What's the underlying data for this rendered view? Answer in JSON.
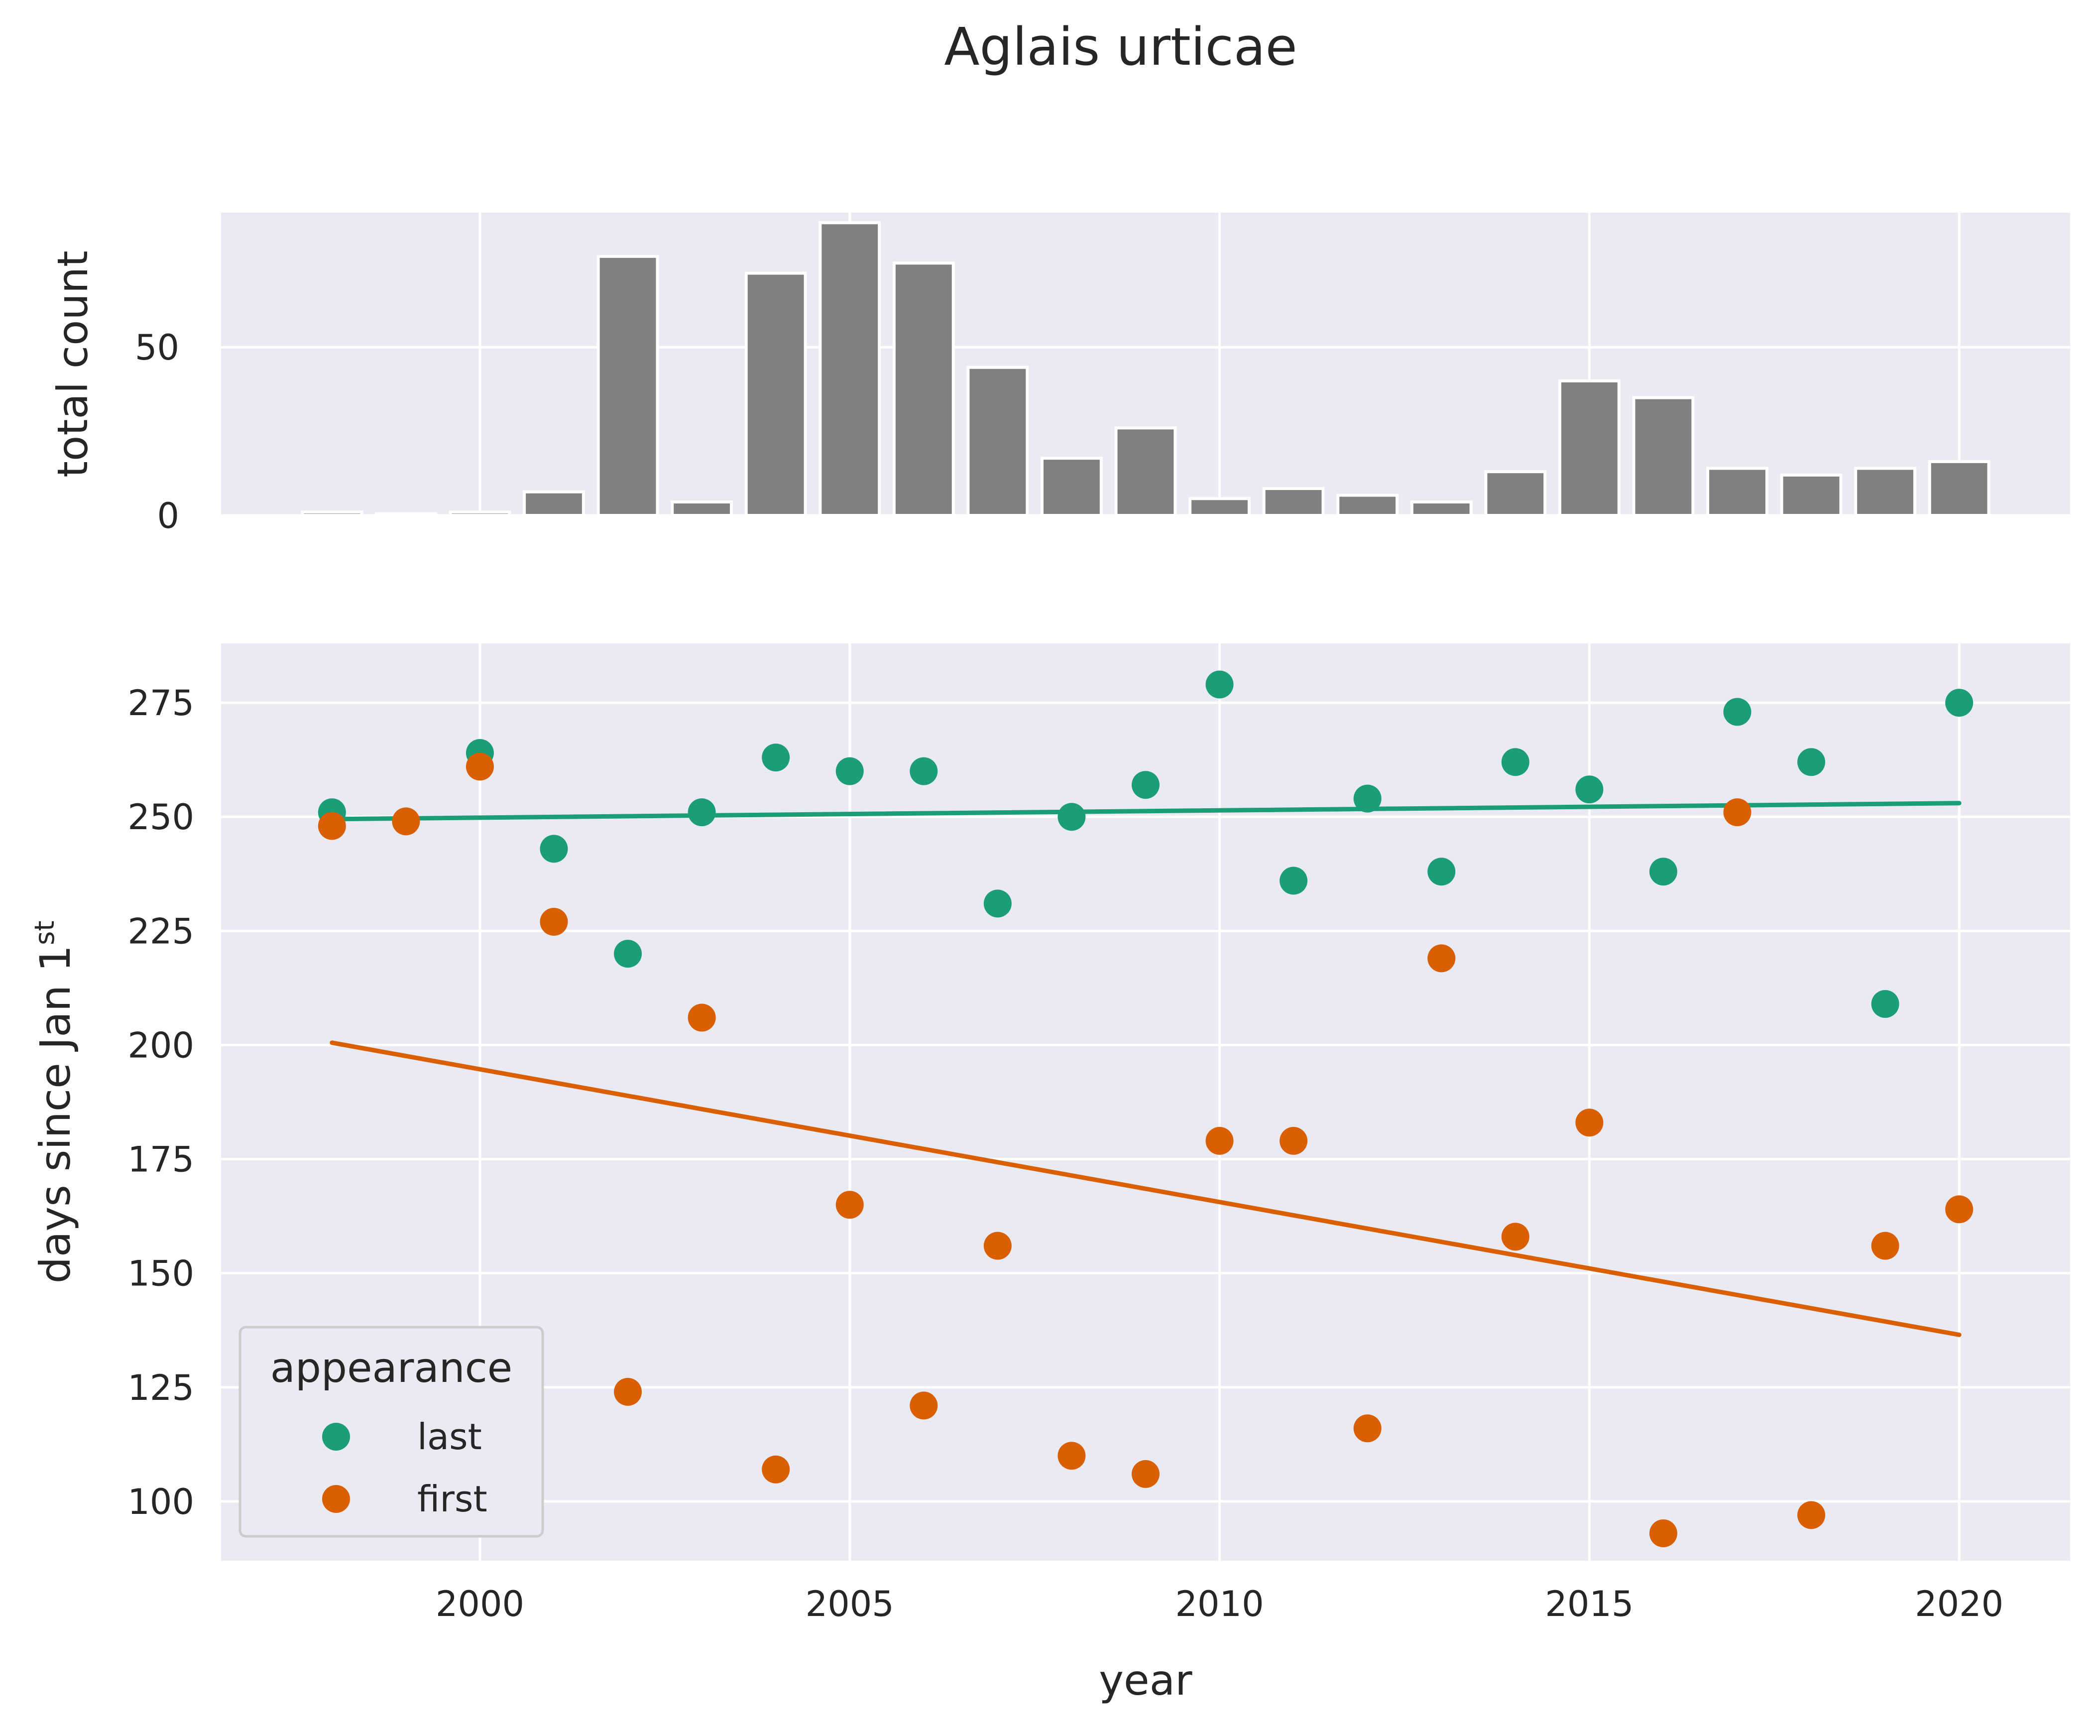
{
  "chart_data": [
    {
      "type": "bar",
      "title": "Aglais urticae",
      "ylabel": "total count",
      "ylim": [
        0,
        90
      ],
      "yticks": [
        0,
        50
      ],
      "xlim": [
        1996.5,
        2021.5
      ],
      "grid": true,
      "bar_color": "#808080",
      "x": [
        1998,
        1999,
        2000,
        2001,
        2002,
        2003,
        2004,
        2005,
        2006,
        2007,
        2008,
        2009,
        2010,
        2011,
        2012,
        2013,
        2014,
        2015,
        2016,
        2017,
        2018,
        2019,
        2020
      ],
      "values": [
        1,
        0.5,
        1,
        7,
        77,
        4,
        72,
        87,
        75,
        44,
        17,
        26,
        5,
        8,
        6,
        4,
        13,
        40,
        35,
        14,
        12,
        14,
        16
      ]
    },
    {
      "type": "scatter",
      "xlabel": "year",
      "ylabel_main": "days since Jan 1",
      "ylabel_sup": "st",
      "xlim": [
        1996.5,
        2021.5
      ],
      "ylim": [
        87,
        288
      ],
      "xticks": [
        2000,
        2005,
        2010,
        2015,
        2020
      ],
      "yticks": [
        100,
        125,
        150,
        175,
        200,
        225,
        250,
        275
      ],
      "grid": true,
      "legend": {
        "title": "appearance",
        "position": "lower-left"
      },
      "series": [
        {
          "name": "last",
          "color": "#1b9e77",
          "x": [
            1998,
            2000,
            2001,
            2002,
            2003,
            2004,
            2005,
            2006,
            2007,
            2008,
            2009,
            2010,
            2011,
            2012,
            2013,
            2014,
            2015,
            2016,
            2017,
            2018,
            2019,
            2020
          ],
          "y": [
            251,
            264,
            243,
            220,
            251,
            263,
            260,
            260,
            231,
            250,
            257,
            279,
            236,
            254,
            238,
            262,
            256,
            238,
            273,
            262,
            209,
            275
          ],
          "trend": {
            "x": [
              1998,
              2020
            ],
            "y": [
              249.5,
              253
            ]
          }
        },
        {
          "name": "first",
          "color": "#d95f02",
          "x": [
            1998,
            1999,
            2000,
            2001,
            2002,
            2003,
            2004,
            2005,
            2006,
            2007,
            2008,
            2009,
            2010,
            2011,
            2012,
            2013,
            2014,
            2015,
            2016,
            2017,
            2018,
            2019,
            2020
          ],
          "y": [
            248,
            249,
            261,
            227,
            124,
            206,
            107,
            165,
            121,
            156,
            110,
            106,
            179,
            179,
            116,
            219,
            158,
            183,
            93,
            251,
            97,
            156,
            164
          ],
          "trend": {
            "x": [
              1998,
              2020
            ],
            "y": [
              200.5,
              136.5
            ]
          }
        }
      ]
    }
  ]
}
